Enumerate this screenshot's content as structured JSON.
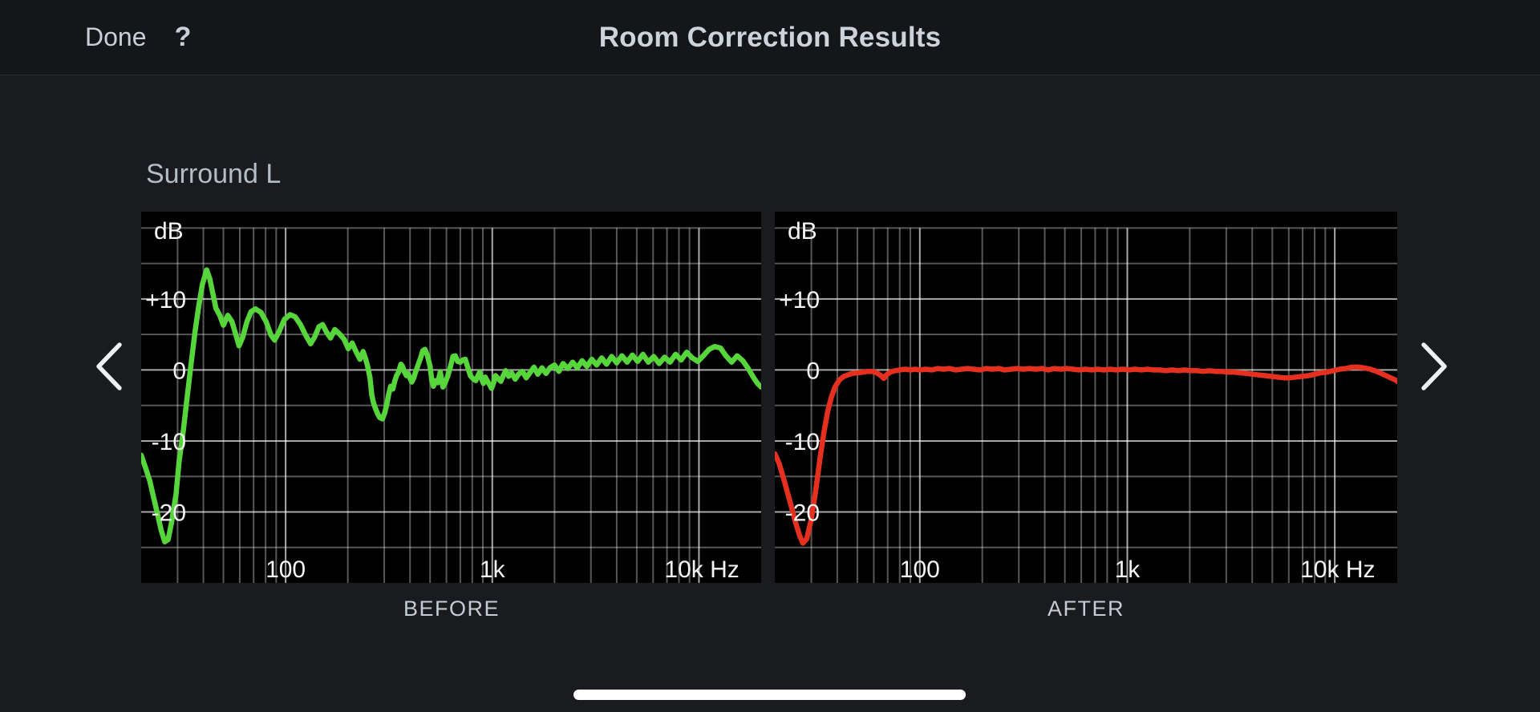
{
  "nav": {
    "done_label": "Done",
    "help_label": "?",
    "title": "Room Correction Results"
  },
  "speaker_label": "Surround L",
  "icons": {
    "prev": "chevron-left-icon",
    "next": "chevron-right-icon"
  },
  "chart_data": [
    {
      "type": "line",
      "title": "BEFORE",
      "series": [
        {
          "name": "before-correction",
          "color": "#56d63a"
        }
      ],
      "x_scale": "log",
      "x_range_hz": [
        20,
        20000
      ],
      "y_unit_label": "dB",
      "y_range_db": [
        -30,
        22.3
      ],
      "grid": {
        "h_lines_db": [
          20,
          15,
          10,
          5,
          0,
          -5,
          -10,
          -15,
          -20,
          -25
        ],
        "h_bright_db": [
          10,
          0,
          -10,
          -20
        ],
        "v_bright_hz": [
          100,
          1000,
          10000
        ],
        "dim_color": "rgba(255,255,255,0.34)",
        "bright_color": "rgba(255,255,255,0.66)"
      },
      "y_tick_labels": [
        {
          "db": 10,
          "label": "+10"
        },
        {
          "db": 0,
          "label": "0"
        },
        {
          "db": -10,
          "label": "-10"
        },
        {
          "db": -20,
          "label": "-20"
        }
      ],
      "x_tick_labels": [
        {
          "hz": 100,
          "label": "100"
        },
        {
          "hz": 1000,
          "label": "1k"
        },
        {
          "hz": 10000,
          "label": "10k Hz"
        }
      ],
      "points": [
        [
          20,
          -12
        ],
        [
          21,
          -13.8
        ],
        [
          22,
          -15.6
        ],
        [
          23,
          -18
        ],
        [
          24,
          -20.3
        ],
        [
          25,
          -22.6
        ],
        [
          26,
          -24.2
        ],
        [
          27,
          -23.9
        ],
        [
          28,
          -21.6
        ],
        [
          29.5,
          -17.5
        ],
        [
          30.5,
          -13
        ],
        [
          32,
          -8.5
        ],
        [
          33.5,
          -3.5
        ],
        [
          35,
          1.2
        ],
        [
          36.5,
          5.5
        ],
        [
          38,
          9
        ],
        [
          39.5,
          12
        ],
        [
          41.5,
          14.1
        ],
        [
          43,
          12.8
        ],
        [
          44,
          11.4
        ],
        [
          46,
          8.7
        ],
        [
          48,
          7.7
        ],
        [
          50,
          6.3
        ],
        [
          52.5,
          7.7
        ],
        [
          55,
          6.8
        ],
        [
          57.5,
          4.9
        ],
        [
          59.5,
          3.4
        ],
        [
          62,
          4.6
        ],
        [
          65,
          6.8
        ],
        [
          68,
          8.2
        ],
        [
          71.5,
          8.6
        ],
        [
          76,
          8.1
        ],
        [
          80.5,
          6.8
        ],
        [
          85,
          4.9
        ],
        [
          88.5,
          4.2
        ],
        [
          93,
          5.4
        ],
        [
          98.5,
          7.1
        ],
        [
          105,
          7.8
        ],
        [
          111,
          7.5
        ],
        [
          118,
          6.4
        ],
        [
          125,
          4.9
        ],
        [
          132,
          3.7
        ],
        [
          138,
          4.6
        ],
        [
          145,
          6.1
        ],
        [
          151,
          6.4
        ],
        [
          158,
          5.3
        ],
        [
          165,
          4.5
        ],
        [
          173,
          5.7
        ],
        [
          182,
          5.1
        ],
        [
          192,
          4.3
        ],
        [
          201,
          3
        ],
        [
          210,
          3.8
        ],
        [
          219,
          2.6
        ],
        [
          229,
          1.5
        ],
        [
          237,
          2.6
        ],
        [
          243,
          1.7
        ],
        [
          249,
          0.6
        ],
        [
          256,
          -1.1
        ],
        [
          261,
          -3.5
        ],
        [
          266,
          -4.6
        ],
        [
          271,
          -5.3
        ],
        [
          278,
          -6.1
        ],
        [
          285,
          -6.7
        ],
        [
          294,
          -6.9
        ],
        [
          302,
          -6
        ],
        [
          309,
          -4.8
        ],
        [
          315,
          -3.5
        ],
        [
          322,
          -2.3
        ],
        [
          330,
          -2.7
        ],
        [
          337,
          -1.6
        ],
        [
          344,
          -0.8
        ],
        [
          352,
          -0.3
        ],
        [
          361,
          0.8
        ],
        [
          368,
          0.5
        ],
        [
          376,
          -0.3
        ],
        [
          384,
          -0.8
        ],
        [
          391,
          -0.5
        ],
        [
          399,
          -1.1
        ],
        [
          408,
          -1.7
        ],
        [
          417,
          -1.1
        ],
        [
          424,
          -0.4
        ],
        [
          436,
          0.6
        ],
        [
          450,
          1.7
        ],
        [
          461,
          2.7
        ],
        [
          472,
          2.9
        ],
        [
          486,
          2
        ],
        [
          500,
          0.5
        ],
        [
          510,
          -1.5
        ],
        [
          519,
          -2.3
        ],
        [
          530,
          -1.5
        ],
        [
          545,
          -1.8
        ],
        [
          560,
          -0.3
        ],
        [
          577,
          -2.4
        ],
        [
          593,
          -1.7
        ],
        [
          608,
          -0.9
        ],
        [
          625,
          0.3
        ],
        [
          645,
          1.9
        ],
        [
          662,
          2
        ],
        [
          680,
          1.2
        ],
        [
          700,
          1.1
        ],
        [
          720,
          1.4
        ],
        [
          740,
          1.5
        ],
        [
          760,
          0.4
        ],
        [
          783,
          -0.8
        ],
        [
          805,
          -1.2
        ],
        [
          832,
          -1.5
        ],
        [
          850,
          -0.9
        ],
        [
          869,
          -0.3
        ],
        [
          887,
          -1.2
        ],
        [
          906,
          -1.9
        ],
        [
          925,
          -1
        ],
        [
          944,
          -1.5
        ],
        [
          967,
          -2
        ],
        [
          992,
          -2.6
        ],
        [
          1015,
          -1.8
        ],
        [
          1037,
          -0.8
        ],
        [
          1065,
          -1.2
        ],
        [
          1100,
          -1.6
        ],
        [
          1130,
          -0.8
        ],
        [
          1160,
          -0.1
        ],
        [
          1200,
          -0.9
        ],
        [
          1240,
          -0.4
        ],
        [
          1290,
          -1.3
        ],
        [
          1340,
          -0.6
        ],
        [
          1400,
          -0.2
        ],
        [
          1460,
          -1.1
        ],
        [
          1520,
          -0.4
        ],
        [
          1590,
          0.4
        ],
        [
          1660,
          -0.6
        ],
        [
          1740,
          0.3
        ],
        [
          1820,
          -0.5
        ],
        [
          1900,
          0.3
        ],
        [
          2000,
          0.7
        ],
        [
          2100,
          -0.2
        ],
        [
          2200,
          0.9
        ],
        [
          2320,
          0.2
        ],
        [
          2450,
          1.1
        ],
        [
          2580,
          0.3
        ],
        [
          2720,
          1.3
        ],
        [
          2870,
          0.5
        ],
        [
          3030,
          1.5
        ],
        [
          3200,
          0.7
        ],
        [
          3380,
          1.7
        ],
        [
          3570,
          0.8
        ],
        [
          3780,
          1.9
        ],
        [
          4000,
          1
        ],
        [
          4240,
          2
        ],
        [
          4490,
          1.1
        ],
        [
          4760,
          2.1
        ],
        [
          5050,
          1.2
        ],
        [
          5360,
          2.2
        ],
        [
          5690,
          1.1
        ],
        [
          6040,
          1.9
        ],
        [
          6420,
          0.9
        ],
        [
          6820,
          1.8
        ],
        [
          7250,
          1.1
        ],
        [
          7710,
          2.2
        ],
        [
          8200,
          1.4
        ],
        [
          8720,
          2.5
        ],
        [
          9280,
          1.7
        ],
        [
          9870,
          1.2
        ],
        [
          10500,
          2
        ],
        [
          11200,
          2.9
        ],
        [
          11900,
          3.3
        ],
        [
          12700,
          3.1
        ],
        [
          13500,
          2
        ],
        [
          14400,
          1.1
        ],
        [
          15300,
          2
        ],
        [
          16300,
          1.3
        ],
        [
          17300,
          0.2
        ],
        [
          18400,
          -1.1
        ],
        [
          19200,
          -1.9
        ],
        [
          20000,
          -2.4
        ]
      ]
    },
    {
      "type": "line",
      "title": "AFTER",
      "series": [
        {
          "name": "after-correction",
          "color": "#e5301f"
        }
      ],
      "x_scale": "log",
      "x_range_hz": [
        20,
        20000
      ],
      "y_unit_label": "dB",
      "y_range_db": [
        -30,
        22.3
      ],
      "grid": {
        "h_lines_db": [
          20,
          15,
          10,
          5,
          0,
          -5,
          -10,
          -15,
          -20,
          -25
        ],
        "h_bright_db": [
          10,
          0,
          -10,
          -20
        ],
        "v_bright_hz": [
          100,
          1000,
          10000
        ],
        "dim_color": "rgba(255,255,255,0.34)",
        "bright_color": "rgba(255,255,255,0.66)"
      },
      "y_tick_labels": [
        {
          "db": 10,
          "label": "+10"
        },
        {
          "db": 0,
          "label": "0"
        },
        {
          "db": -10,
          "label": "-10"
        },
        {
          "db": -20,
          "label": "-20"
        }
      ],
      "x_tick_labels": [
        {
          "hz": 100,
          "label": "100"
        },
        {
          "hz": 1000,
          "label": "1k"
        },
        {
          "hz": 10000,
          "label": "10k Hz"
        }
      ],
      "points": [
        [
          20,
          -11.8
        ],
        [
          21,
          -13.2
        ],
        [
          22.2,
          -15.6
        ],
        [
          23.5,
          -18.2
        ],
        [
          25,
          -21.2
        ],
        [
          26.3,
          -23.3
        ],
        [
          27.3,
          -24.4
        ],
        [
          28.5,
          -23.8
        ],
        [
          30,
          -21
        ],
        [
          31.5,
          -17
        ],
        [
          33,
          -12.5
        ],
        [
          34.5,
          -8.8
        ],
        [
          36,
          -5.8
        ],
        [
          37.5,
          -3.8
        ],
        [
          39,
          -2.4
        ],
        [
          41,
          -1.4
        ],
        [
          43,
          -0.9
        ],
        [
          45,
          -0.7
        ],
        [
          47,
          -0.5
        ],
        [
          50,
          -0.4
        ],
        [
          53,
          -0.3
        ],
        [
          56,
          -0.2
        ],
        [
          59,
          -0.2
        ],
        [
          62,
          -0.4
        ],
        [
          65,
          -0.8
        ],
        [
          67,
          -1.2
        ],
        [
          69,
          -0.7
        ],
        [
          72,
          -0.3
        ],
        [
          76,
          -0.1
        ],
        [
          80,
          0
        ],
        [
          85,
          0.1
        ],
        [
          90,
          0
        ],
        [
          95,
          0.1
        ],
        [
          100,
          0
        ],
        [
          107,
          0.1
        ],
        [
          114,
          0
        ],
        [
          122,
          0.2
        ],
        [
          130,
          0.1
        ],
        [
          139,
          0.2
        ],
        [
          149,
          0
        ],
        [
          159,
          0.1
        ],
        [
          170,
          0.2
        ],
        [
          182,
          0.1
        ],
        [
          195,
          0
        ],
        [
          209,
          0.2
        ],
        [
          224,
          0.1
        ],
        [
          240,
          0.2
        ],
        [
          257,
          0
        ],
        [
          275,
          0.1
        ],
        [
          295,
          0.2
        ],
        [
          316,
          0.1
        ],
        [
          338,
          0.2
        ],
        [
          362,
          0.1
        ],
        [
          388,
          0.2
        ],
        [
          416,
          0
        ],
        [
          445,
          0.2
        ],
        [
          477,
          0.1
        ],
        [
          511,
          0.2
        ],
        [
          547,
          0.1
        ],
        [
          586,
          0
        ],
        [
          628,
          0.1
        ],
        [
          673,
          0
        ],
        [
          721,
          0.1
        ],
        [
          772,
          0
        ],
        [
          827,
          0.1
        ],
        [
          886,
          0
        ],
        [
          949,
          0.1
        ],
        [
          1017,
          0
        ],
        [
          1089,
          0.1
        ],
        [
          1167,
          0
        ],
        [
          1250,
          0.1
        ],
        [
          1339,
          0
        ],
        [
          1434,
          0
        ],
        [
          1536,
          -0.1
        ],
        [
          1645,
          0
        ],
        [
          1763,
          -0.1
        ],
        [
          1888,
          0
        ],
        [
          2023,
          -0.1
        ],
        [
          2167,
          -0.1
        ],
        [
          2321,
          -0.2
        ],
        [
          2486,
          -0.1
        ],
        [
          2663,
          -0.2
        ],
        [
          2853,
          -0.2
        ],
        [
          3056,
          -0.3
        ],
        [
          3273,
          -0.3
        ],
        [
          3506,
          -0.4
        ],
        [
          3756,
          -0.5
        ],
        [
          4023,
          -0.6
        ],
        [
          4310,
          -0.7
        ],
        [
          4616,
          -0.8
        ],
        [
          4945,
          -0.9
        ],
        [
          5297,
          -1
        ],
        [
          5674,
          -1.1
        ],
        [
          6078,
          -1.1
        ],
        [
          6510,
          -1
        ],
        [
          6974,
          -0.9
        ],
        [
          7470,
          -0.8
        ],
        [
          8002,
          -0.6
        ],
        [
          8571,
          -0.4
        ],
        [
          9181,
          -0.3
        ],
        [
          9835,
          -0.1
        ],
        [
          10535,
          0.1
        ],
        [
          11285,
          0.2
        ],
        [
          12088,
          0.4
        ],
        [
          12949,
          0.4
        ],
        [
          13871,
          0.3
        ],
        [
          14858,
          0.1
        ],
        [
          15916,
          -0.2
        ],
        [
          17049,
          -0.6
        ],
        [
          18263,
          -1
        ],
        [
          19563,
          -1.4
        ],
        [
          20000,
          -1.6
        ]
      ]
    }
  ]
}
